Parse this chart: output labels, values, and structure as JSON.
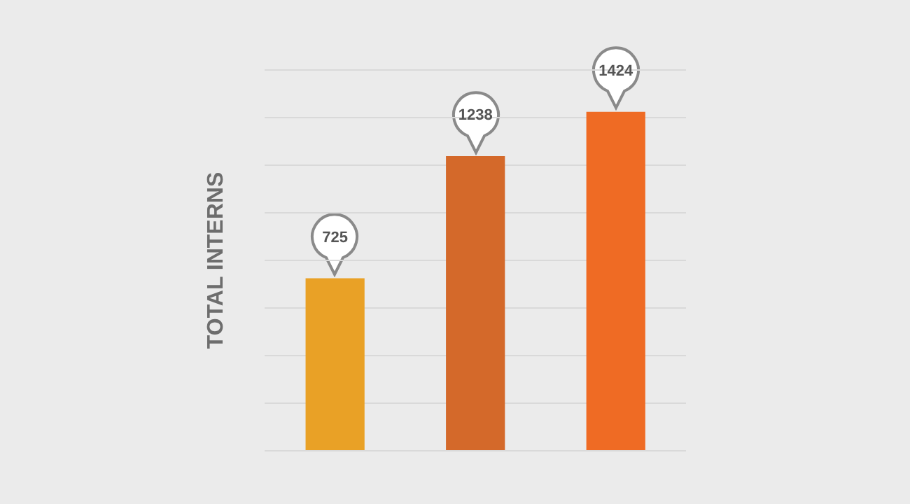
{
  "chart_data": {
    "type": "bar",
    "ylabel": "TOTAL INTERNS",
    "categories": [
      null,
      null,
      null
    ],
    "values": [
      725,
      1238,
      1424
    ],
    "colors": [
      "#e9a126",
      "#d4692a",
      "#ef6b24"
    ],
    "grid": "y",
    "tick_labels": false,
    "data_labels": true,
    "legend": false
  }
}
